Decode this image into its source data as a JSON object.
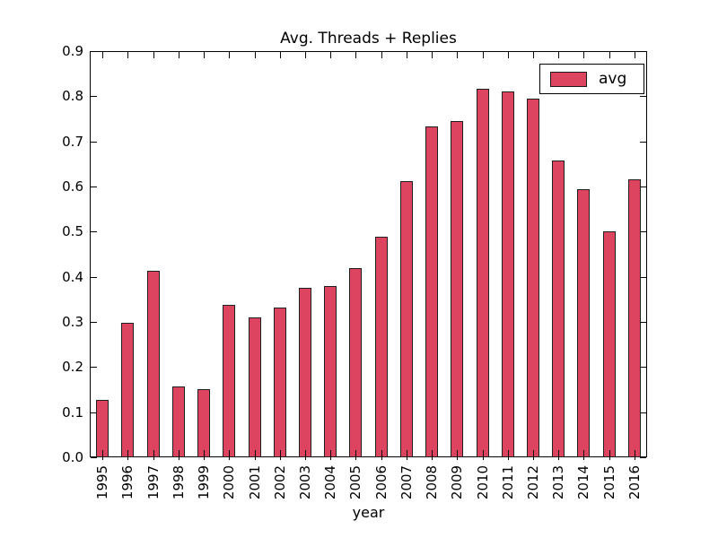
{
  "chart_data": {
    "type": "bar",
    "title": "Avg. Threads + Replies",
    "xlabel": "year",
    "ylabel": "",
    "categories": [
      "1995",
      "1996",
      "1997",
      "1998",
      "1999",
      "2000",
      "2001",
      "2002",
      "2003",
      "2004",
      "2005",
      "2006",
      "2007",
      "2008",
      "2009",
      "2010",
      "2011",
      "2012",
      "2013",
      "2014",
      "2015",
      "2016"
    ],
    "series": [
      {
        "name": "avg",
        "values": [
          0.127,
          0.298,
          0.414,
          0.158,
          0.152,
          0.337,
          0.31,
          0.332,
          0.375,
          0.38,
          0.42,
          0.489,
          0.613,
          0.733,
          0.746,
          0.816,
          0.81,
          0.794,
          0.658,
          0.595,
          0.5,
          0.615
        ]
      }
    ],
    "ylim": [
      0.0,
      0.9
    ],
    "yticks": [
      0.0,
      0.1,
      0.2,
      0.3,
      0.4,
      0.5,
      0.6,
      0.7,
      0.8,
      0.9
    ],
    "grid": false,
    "legend": {
      "entries": [
        "avg"
      ],
      "position": "upper right"
    },
    "colors": {
      "bar_fill": "#dc4460",
      "bar_edge": "#1f1f1f",
      "axis": "#000000",
      "background": "#ffffff"
    }
  }
}
